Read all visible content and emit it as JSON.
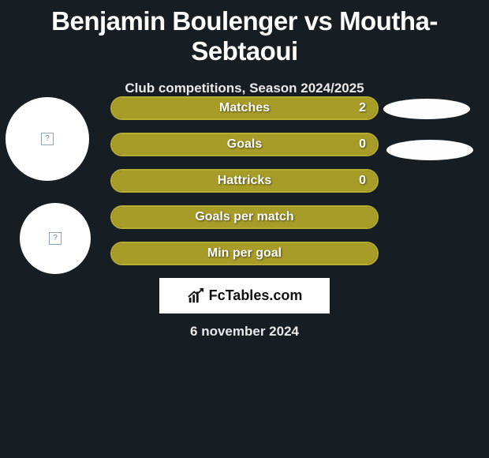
{
  "title": "Benjamin Boulenger vs Moutha-Sebtaoui",
  "subtitle": "Club competitions, Season 2024/2025",
  "date": "6 november 2024",
  "brand": "FcTables.com",
  "colors": {
    "bar_fill": "#a79c28",
    "bar_border": "#b8ad33",
    "background": "#161d23",
    "portrait": "#ffffff",
    "pill": "#fdfdfd"
  },
  "bars": [
    {
      "label": "Matches",
      "value": "2",
      "fill_pct": 100
    },
    {
      "label": "Goals",
      "value": "0",
      "fill_pct": 100
    },
    {
      "label": "Hattricks",
      "value": "0",
      "fill_pct": 100
    },
    {
      "label": "Goals per match",
      "value": "",
      "fill_pct": 100
    },
    {
      "label": "Min per goal",
      "value": "",
      "fill_pct": 100
    }
  ]
}
